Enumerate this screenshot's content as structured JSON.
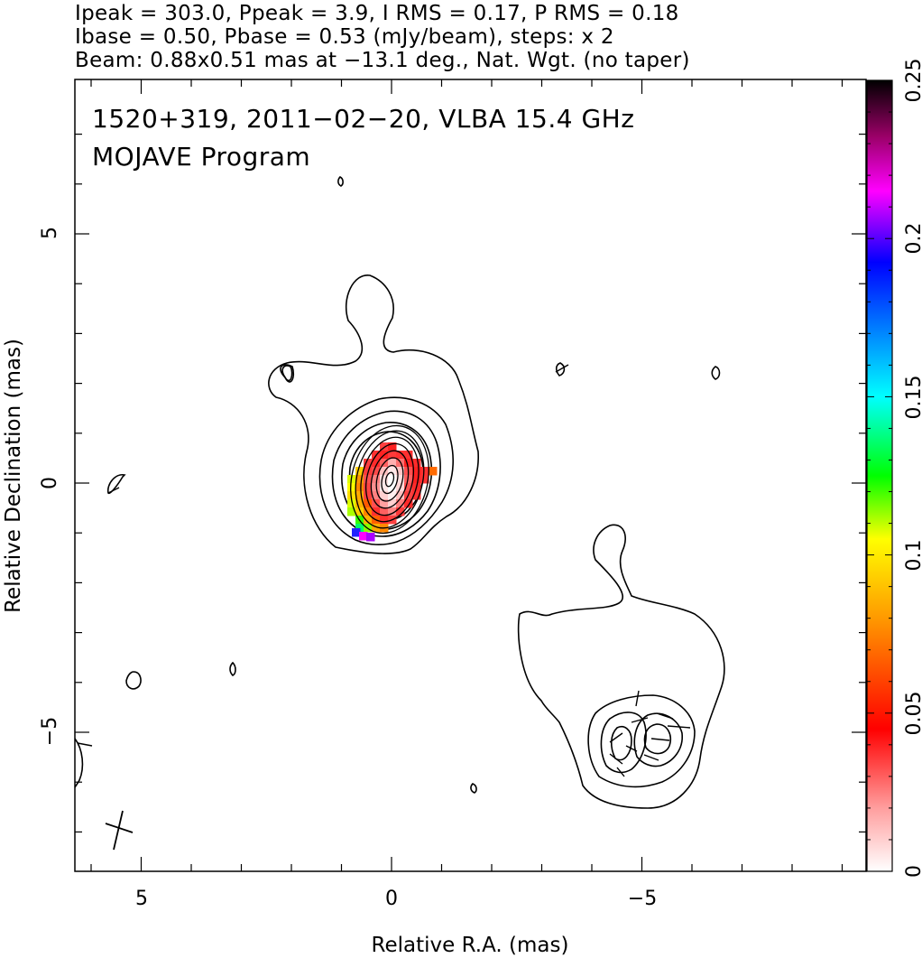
{
  "header": {
    "line1": "Ipeak = 303.0, Ppeak = 3.9, I RMS = 0.17, P RMS = 0.18",
    "line2": "Ibase = 0.50, Pbase = 0.53 (mJy/beam), steps: x 2",
    "line3": "Beam: 0.88x0.51 mas at −13.1 deg., Nat. Wgt. (no taper)"
  },
  "chart_data": {
    "type": "contour",
    "annotations": [
      "1520+319, 2011−02−20, VLBA 15.4 GHz",
      "MOJAVE Program"
    ],
    "xlabel": "Relative R.A. (mas)",
    "ylabel": "Relative Declination (mas)",
    "xlim": [
      6.3,
      -9.5
    ],
    "ylim": [
      -7.8,
      8.0
    ],
    "x_ticks": [
      {
        "value": 5,
        "label": "5"
      },
      {
        "value": 0,
        "label": "0"
      },
      {
        "value": -5,
        "label": "−5"
      }
    ],
    "y_ticks": [
      {
        "value": 5,
        "label": "5"
      },
      {
        "value": 0,
        "label": "0"
      },
      {
        "value": -5,
        "label": "−5"
      }
    ],
    "colorbar": {
      "min": 0,
      "max": 0.25,
      "tick_labels": [
        {
          "value": 0,
          "label": "0"
        },
        {
          "value": 0.05,
          "label": "0.05"
        },
        {
          "value": 0.1,
          "label": "0.1"
        },
        {
          "value": 0.15,
          "label": "0.15"
        },
        {
          "value": 0.2,
          "label": "0.2"
        },
        {
          "value": 0.25,
          "label": "0.25"
        }
      ],
      "colors": [
        "#ffffff",
        "#ff9e9e",
        "#ff0000",
        "#ff9900",
        "#ffff00",
        "#00ff00",
        "#00ffff",
        "#0000ff",
        "#ff00ff",
        "#990066",
        "#000000"
      ]
    },
    "peak_intensity_mJy_per_beam": 303.0,
    "peak_polarized_mJy_per_beam": 3.9,
    "i_rms": 0.17,
    "p_rms": 0.18,
    "i_base": 0.5,
    "p_base": 0.53,
    "contour_step_factor": 2,
    "beam": {
      "major_mas": 0.88,
      "minor_mas": 0.51,
      "pa_deg": -13.1
    },
    "core": {
      "x": 0,
      "y": 0,
      "n_contours": 9
    },
    "jet_component": {
      "x": -5.0,
      "y": -5.1
    }
  }
}
